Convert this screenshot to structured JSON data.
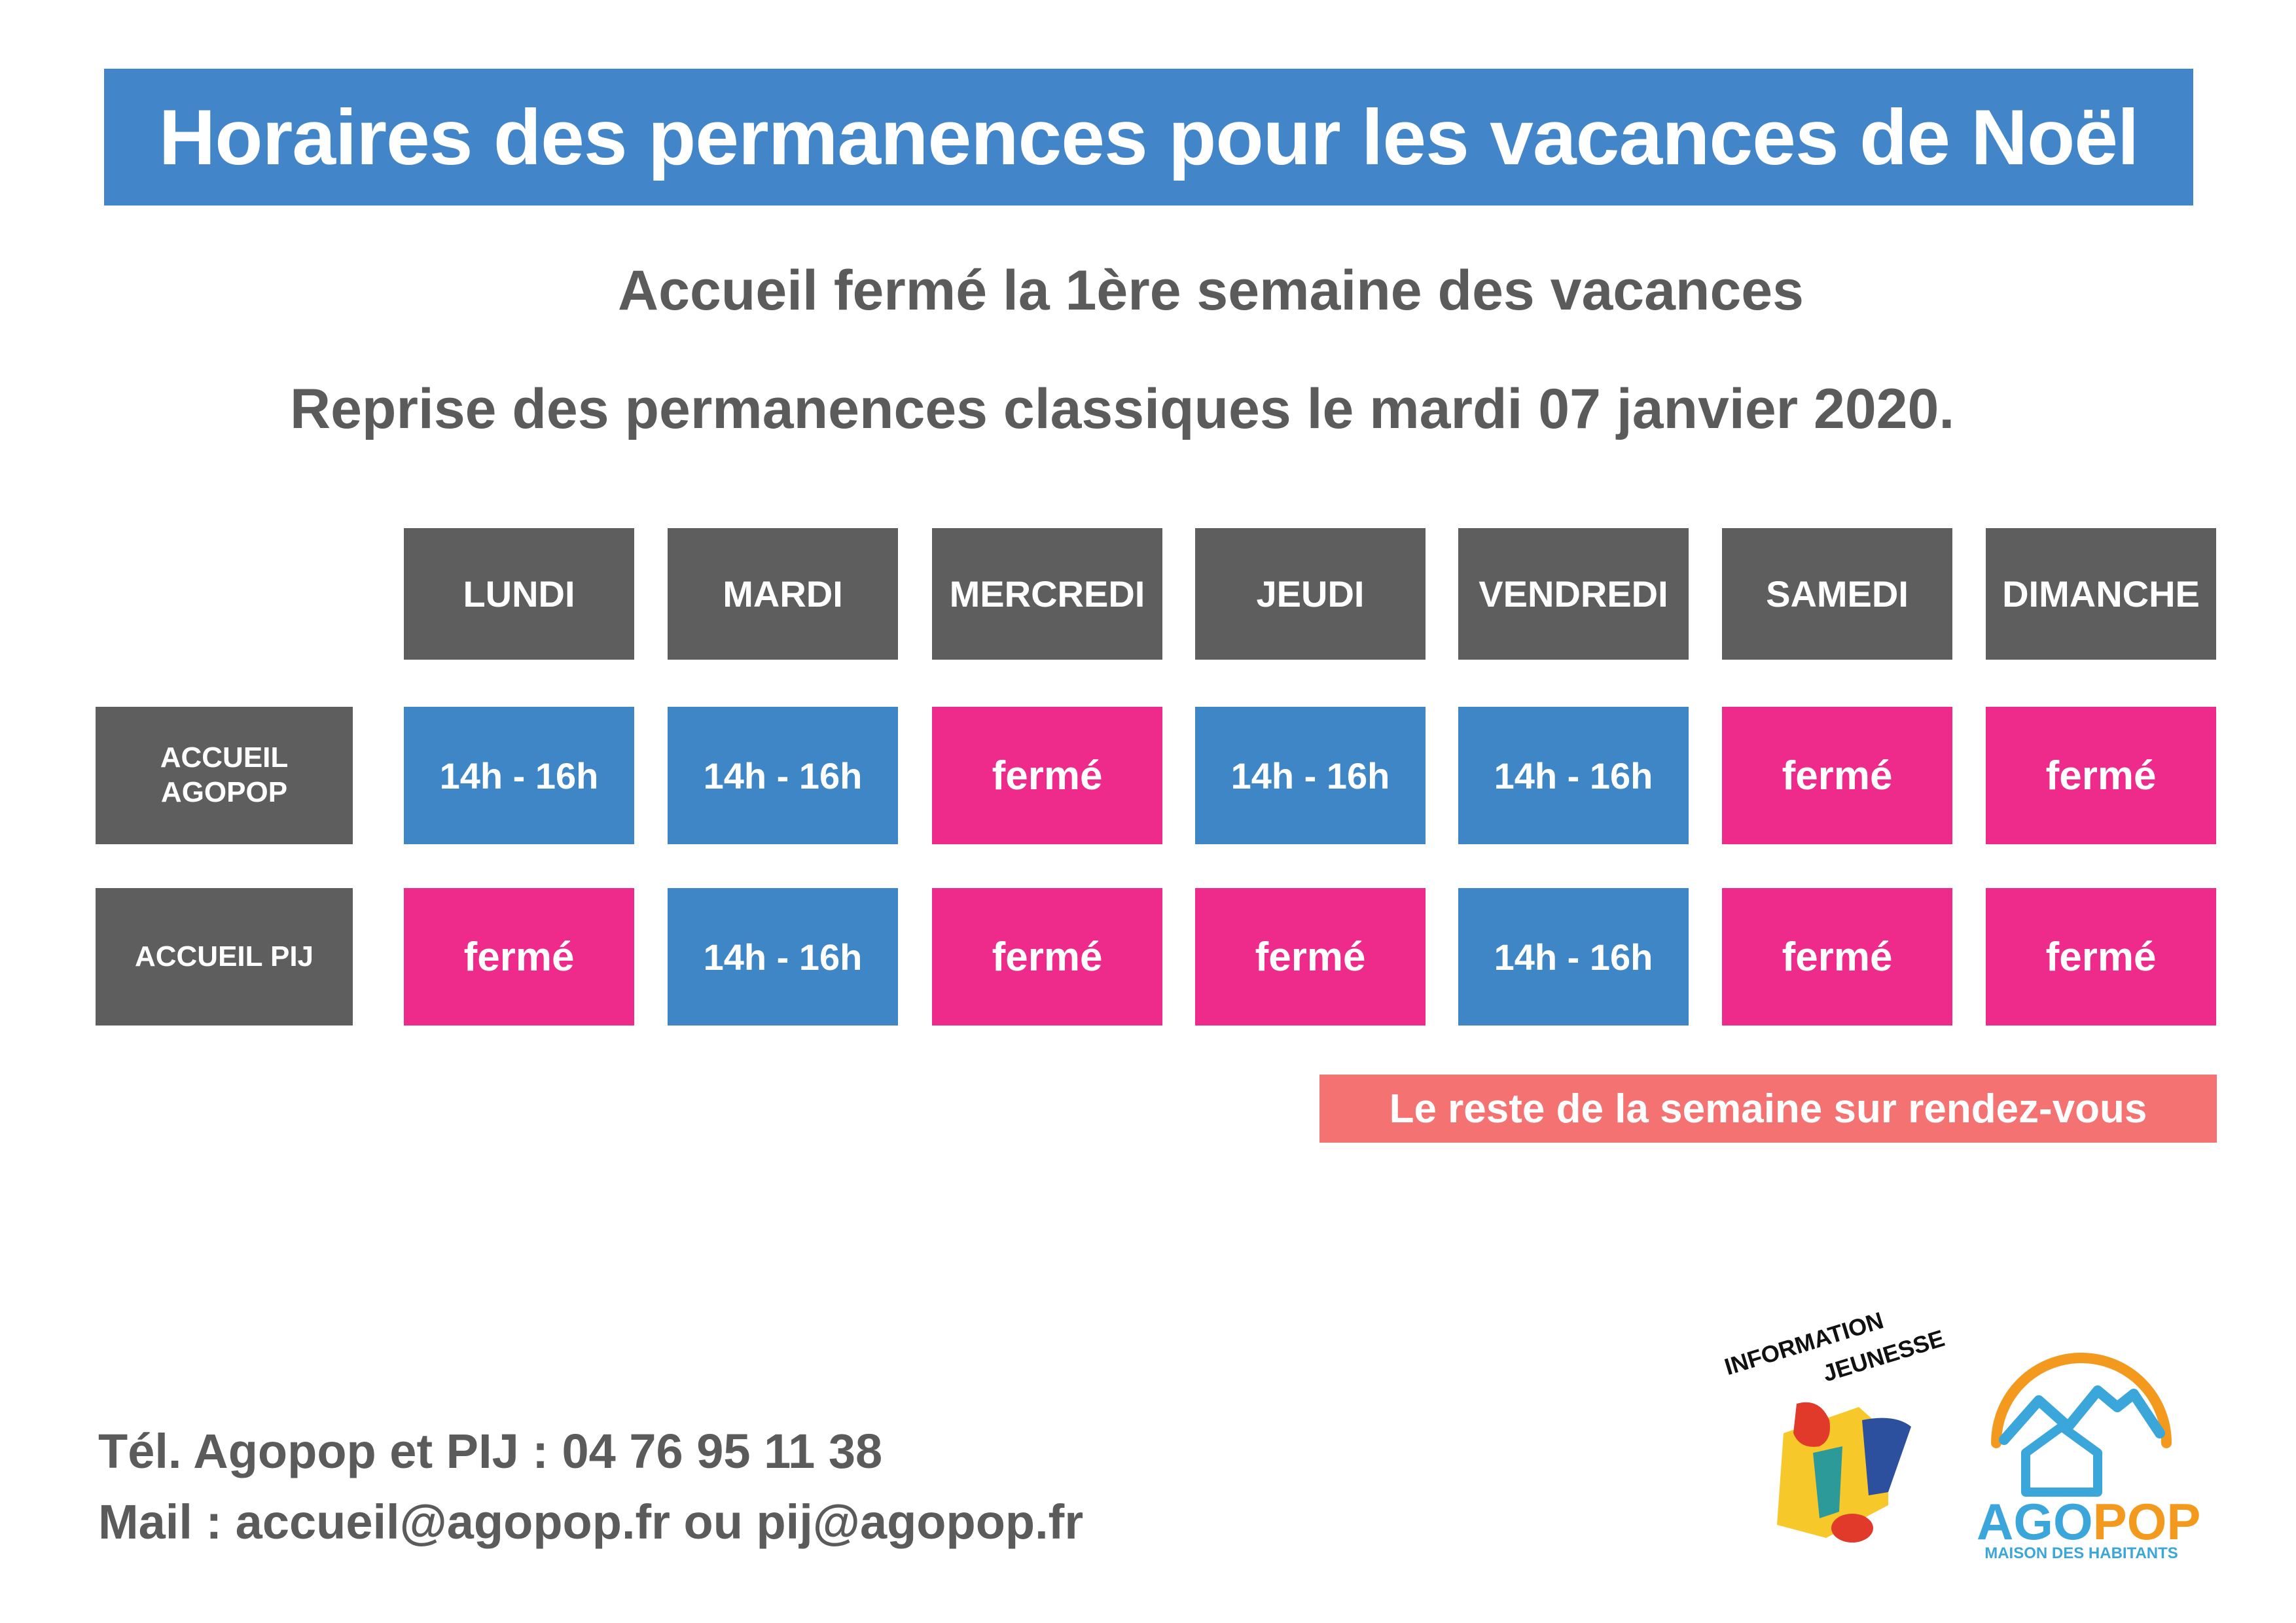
{
  "title": "Horaires des permanences pour les vacances de Noël",
  "subtitle_1": "Accueil fermé la 1ère semaine des vacances",
  "subtitle_2": "Reprise des permanences classiques le mardi 07 janvier 2020.",
  "schedule": {
    "days": [
      "LUNDI",
      "MARDI",
      "MERCREDI",
      "JEUDI",
      "VENDREDI",
      "SAMEDI",
      "DIMANCHE"
    ],
    "rows": [
      {
        "label_line1": "ACCUEIL",
        "label_line2": "AGOPOP",
        "cells": [
          "14h - 16h",
          "14h - 16h",
          "fermé",
          "14h - 16h",
          "14h - 16h",
          "fermé",
          "fermé"
        ]
      },
      {
        "label_line1": "ACCUEIL PIJ",
        "label_line2": "",
        "cells": [
          "fermé",
          "14h - 16h",
          "fermé",
          "fermé",
          "14h - 16h",
          "fermé",
          "fermé"
        ]
      }
    ]
  },
  "note": "Le reste de la semaine sur rendez-vous",
  "contact": {
    "phone": "Tél. Agopop et PIJ : 04 76 95 11 38",
    "mail": "Mail : accueil@agopop.fr ou pij@agopop.fr"
  },
  "logos": {
    "ij_line1": "INFORMATION",
    "ij_line2": "JEUNESSE",
    "agopop_part1": "AGO",
    "agopop_part2": "POP",
    "agopop_tagline": "MAISON DES HABITANTS"
  },
  "colors": {
    "title_blue": "#4285c8",
    "open_blue": "#3f86c7",
    "closed_pink": "#ee2a8a",
    "header_gray": "#5e5e5e",
    "note_salmon": "#f47372",
    "text_gray": "#5b5b5b",
    "agopop_blue": "#3aa6d9",
    "agopop_orange": "#f39a1e"
  }
}
